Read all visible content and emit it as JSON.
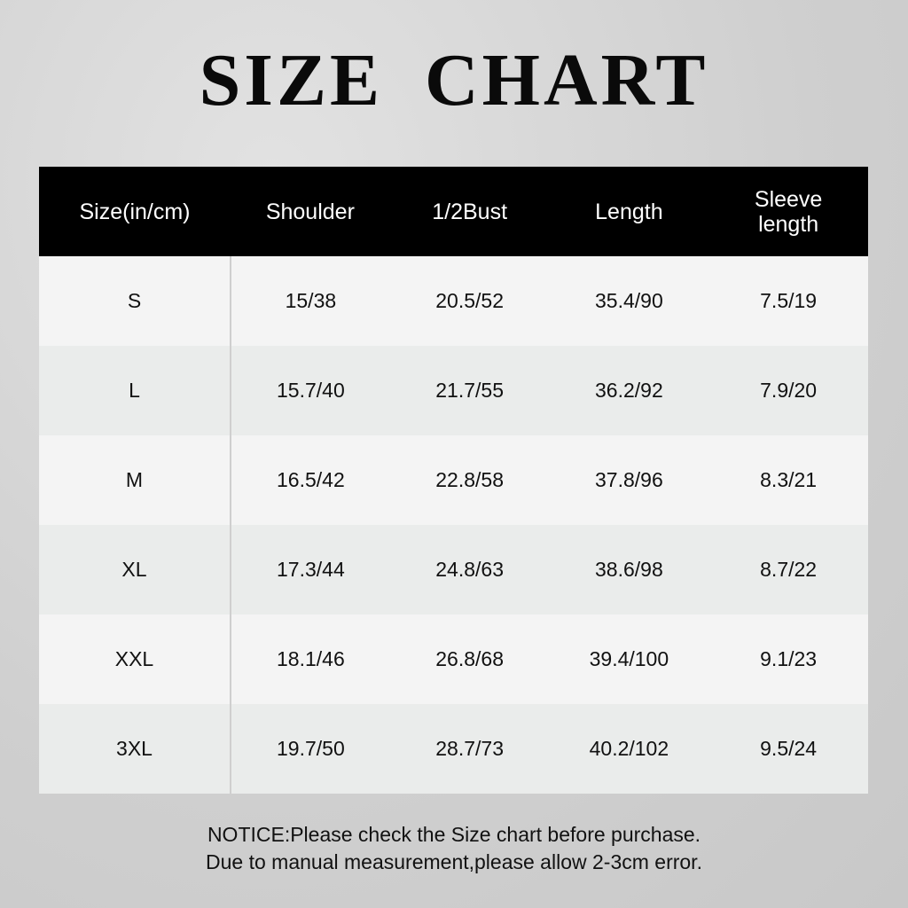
{
  "title": "SIZE CHART",
  "table": {
    "headers": [
      "Size(in/cm)",
      "Shoulder",
      "1/2Bust",
      "Length",
      "Sleeve length"
    ],
    "rows": [
      [
        "S",
        "15/38",
        "20.5/52",
        "35.4/90",
        "7.5/19"
      ],
      [
        "L",
        "15.7/40",
        "21.7/55",
        "36.2/92",
        "7.9/20"
      ],
      [
        "M",
        "16.5/42",
        "22.8/58",
        "37.8/96",
        "8.3/21"
      ],
      [
        "XL",
        "17.3/44",
        "24.8/63",
        "38.6/98",
        "8.7/22"
      ],
      [
        "XXL",
        "18.1/46",
        "26.8/68",
        "39.4/100",
        "9.1/23"
      ],
      [
        "3XL",
        "19.7/50",
        "28.7/73",
        "40.2/102",
        "9.5/24"
      ]
    ]
  },
  "notice": {
    "line1": "NOTICE:Please check the Size chart before purchase.",
    "line2": "Due to manual measurement,please allow 2-3cm error."
  },
  "colors": {
    "header_bg": "#000000",
    "row_light": "#f4f4f4",
    "row_alt": "#eaeceb"
  }
}
